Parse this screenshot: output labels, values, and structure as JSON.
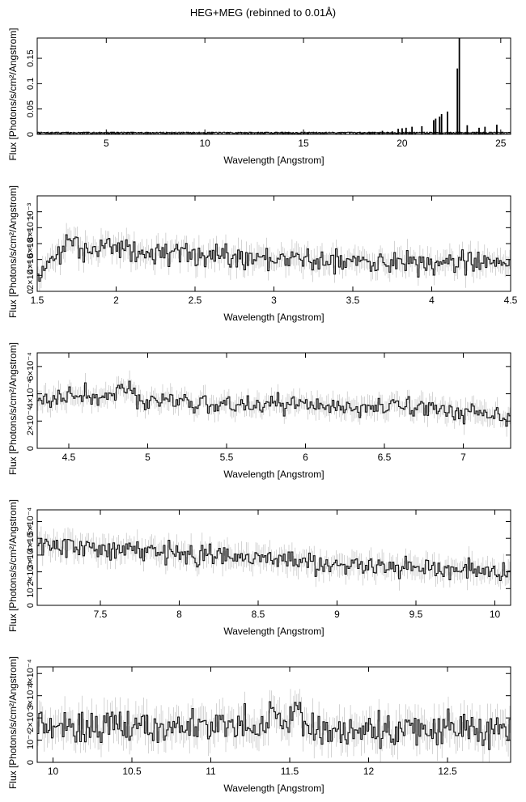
{
  "figure_title": "HEG+MEG (rebinned to 0.01Å)",
  "chart_data": [
    {
      "type": "line",
      "xlabel": "Wavelength [Angstrom]",
      "ylabel": "Flux [Photons/s/cm²/Angstrom]",
      "xlim": [
        1.5,
        25.5
      ],
      "ylim": [
        0,
        0.19
      ],
      "xticks": [
        5,
        10,
        15,
        20,
        25
      ],
      "xtick_labels": [
        "5",
        "10",
        "15",
        "20",
        "25"
      ],
      "yticks": [
        0,
        0.05,
        0.1,
        0.15
      ],
      "ytick_labels": [
        "0",
        "0.05",
        "0.1",
        "0.15"
      ],
      "baseline": 0.003,
      "lines": [
        {
          "x": 18.6,
          "y": 0.005
        },
        {
          "x": 19.0,
          "y": 0.007
        },
        {
          "x": 19.5,
          "y": 0.006
        },
        {
          "x": 19.8,
          "y": 0.011
        },
        {
          "x": 20.0,
          "y": 0.012
        },
        {
          "x": 20.2,
          "y": 0.013
        },
        {
          "x": 20.5,
          "y": 0.015
        },
        {
          "x": 21.0,
          "y": 0.016
        },
        {
          "x": 21.6,
          "y": 0.028
        },
        {
          "x": 21.7,
          "y": 0.031
        },
        {
          "x": 21.9,
          "y": 0.035
        },
        {
          "x": 22.0,
          "y": 0.04
        },
        {
          "x": 22.3,
          "y": 0.045
        },
        {
          "x": 22.8,
          "y": 0.13
        },
        {
          "x": 22.9,
          "y": 0.19
        },
        {
          "x": 23.3,
          "y": 0.018
        },
        {
          "x": 23.9,
          "y": 0.013
        },
        {
          "x": 24.2,
          "y": 0.015
        },
        {
          "x": 24.8,
          "y": 0.019
        }
      ]
    },
    {
      "type": "line",
      "xlabel": "Wavelength [Angstrom]",
      "ylabel": "Flux [Photons/s/cm²/Angstrom]",
      "xlim": [
        1.5,
        4.5
      ],
      "ylim": [
        0,
        0.0012
      ],
      "xticks": [
        1.5,
        2,
        2.5,
        3,
        3.5,
        4,
        4.5
      ],
      "xtick_labels": [
        "1.5",
        "2",
        "2.5",
        "3",
        "3.5",
        "4",
        "4.5"
      ],
      "yticks": [
        0,
        0.0002,
        0.0004,
        0.0006,
        0.0008,
        0.001
      ],
      "ytick_labels": [
        "0",
        "2×10⁻⁴",
        "4×10⁻⁴",
        "6×10⁻⁴",
        "8×10⁻⁴",
        "10⁻³"
      ],
      "envelope": [
        [
          1.5,
          0.00015
        ],
        [
          1.6,
          0.0004
        ],
        [
          1.7,
          0.0006
        ],
        [
          1.75,
          0.00065
        ],
        [
          1.8,
          0.0005
        ],
        [
          1.95,
          0.00062
        ],
        [
          2.0,
          0.00055
        ],
        [
          2.2,
          0.00046
        ],
        [
          2.5,
          0.0005
        ],
        [
          2.7,
          0.00044
        ],
        [
          3.0,
          0.0004
        ],
        [
          3.5,
          0.00038
        ],
        [
          4.0,
          0.00036
        ],
        [
          4.5,
          0.00035
        ]
      ],
      "noise": 0.0001
    },
    {
      "type": "line",
      "xlabel": "Wavelength [Angstrom]",
      "ylabel": "Flux [Photons/s/cm²/Angstrom]",
      "xlim": [
        4.3,
        7.3
      ],
      "ylim": [
        0,
        0.0007
      ],
      "xticks": [
        4.5,
        5,
        5.5,
        6,
        6.5,
        7
      ],
      "xtick_labels": [
        "4.5",
        "5",
        "5.5",
        "6",
        "6.5",
        "7"
      ],
      "yticks": [
        0,
        0.0002,
        0.0004,
        0.0006
      ],
      "ytick_labels": [
        "0",
        "2×10⁻⁴",
        "4×10⁻⁴",
        "6×10⁻⁴"
      ],
      "envelope": [
        [
          4.3,
          0.00037
        ],
        [
          4.8,
          0.00038
        ],
        [
          4.85,
          0.00044
        ],
        [
          5.0,
          0.00035
        ],
        [
          5.5,
          0.00033
        ],
        [
          6.0,
          0.00031
        ],
        [
          6.5,
          0.00029
        ],
        [
          6.6,
          0.00033
        ],
        [
          7.0,
          0.00027
        ],
        [
          7.3,
          0.00026
        ]
      ],
      "noise": 5e-05
    },
    {
      "type": "line",
      "xlabel": "Wavelength [Angstrom]",
      "ylabel": "Flux [Photons/s/cm²/Angstrom]",
      "xlim": [
        7.1,
        10.1
      ],
      "ylim": [
        0,
        0.00057
      ],
      "xticks": [
        7.5,
        8,
        8.5,
        9,
        9.5,
        10
      ],
      "xtick_labels": [
        "7.5",
        "8",
        "8.5",
        "9",
        "9.5",
        "10"
      ],
      "yticks": [
        0,
        0.0001,
        0.0002,
        0.0003,
        0.0004,
        0.0005
      ],
      "ytick_labels": [
        "0",
        "10⁻⁴",
        "2×10⁻⁴",
        "3×10⁻⁴",
        "4×10⁻⁴",
        "5×10⁻⁴"
      ],
      "envelope": [
        [
          7.1,
          0.00035
        ],
        [
          7.65,
          0.00034
        ],
        [
          8.0,
          0.00031
        ],
        [
          8.5,
          0.00028
        ],
        [
          9.0,
          0.00025
        ],
        [
          9.5,
          0.00021
        ],
        [
          10.1,
          0.0002
        ]
      ],
      "noise": 4.5e-05
    },
    {
      "type": "line",
      "xlabel": "Wavelength [Angstrom]",
      "ylabel": "Flux [Photons/s/cm²/Angstrom]",
      "xlim": [
        9.9,
        12.9
      ],
      "ylim": [
        0,
        0.00043
      ],
      "xticks": [
        10,
        10.5,
        11,
        11.5,
        12,
        12.5
      ],
      "xtick_labels": [
        "10",
        "10.5",
        "11",
        "11.5",
        "12",
        "12.5"
      ],
      "yticks": [
        0,
        0.0001,
        0.0002,
        0.0003,
        0.0004
      ],
      "ytick_labels": [
        "0",
        "10⁻⁴",
        "2×10⁻⁴",
        "3×10⁻⁴",
        "4×10⁻⁴"
      ],
      "envelope": [
        [
          9.9,
          0.00017
        ],
        [
          10.5,
          0.00017
        ],
        [
          11.0,
          0.00016
        ],
        [
          11.5,
          0.00018
        ],
        [
          11.55,
          0.00025
        ],
        [
          11.6,
          0.00015
        ],
        [
          12.0,
          0.00014
        ],
        [
          12.5,
          0.00015
        ],
        [
          12.9,
          0.00016
        ]
      ],
      "noise": 5e-05
    }
  ]
}
